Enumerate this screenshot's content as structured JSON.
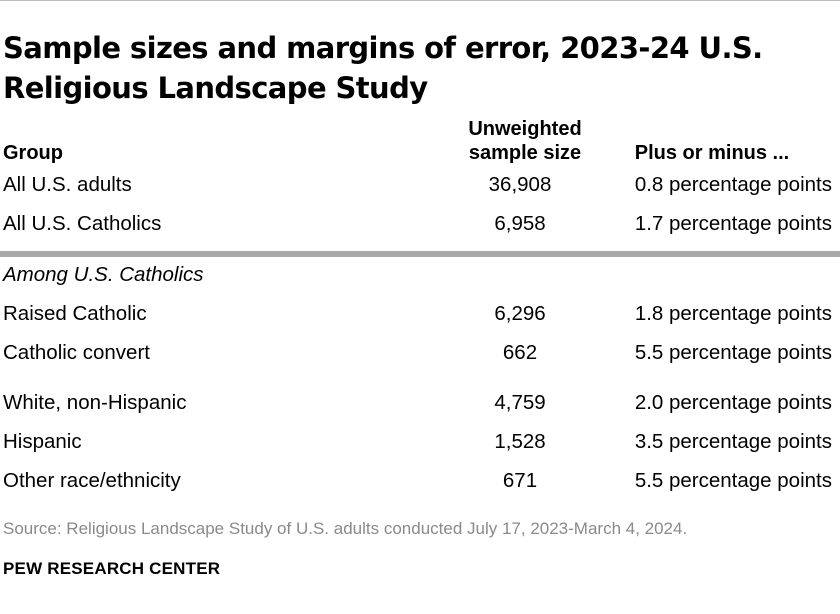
{
  "title": "Sample sizes and margins of error, 2023-24 U.S. Religious Landscape Study",
  "headers": {
    "group": "Group",
    "sample_line1": "Unweighted",
    "sample_line2": "sample size",
    "plus_minus": "Plus or minus ..."
  },
  "rows_top": [
    {
      "group": "All U.S. adults",
      "sample": "36,908",
      "moe": "0.8 percentage points"
    },
    {
      "group": "All U.S. Catholics",
      "sample": "6,958",
      "moe": "1.7 percentage points"
    }
  ],
  "section_label": "Among U.S. Catholics",
  "rows_bottom": [
    {
      "group": "Raised Catholic",
      "sample": "6,296",
      "moe": "1.8 percentage points"
    },
    {
      "group": "Catholic convert",
      "sample": "662",
      "moe": "5.5 percentage points"
    },
    {
      "group": "White, non-Hispanic",
      "sample": "4,759",
      "moe": "2.0 percentage points"
    },
    {
      "group": "Hispanic",
      "sample": "1,528",
      "moe": "3.5 percentage points"
    },
    {
      "group": "Other race/ethnicity",
      "sample": "671",
      "moe": "5.5 percentage points"
    }
  ],
  "source": "Source: Religious Landscape Study of U.S. adults conducted July 17, 2023-March 4, 2024.",
  "brand": "PEW RESEARCH CENTER"
}
